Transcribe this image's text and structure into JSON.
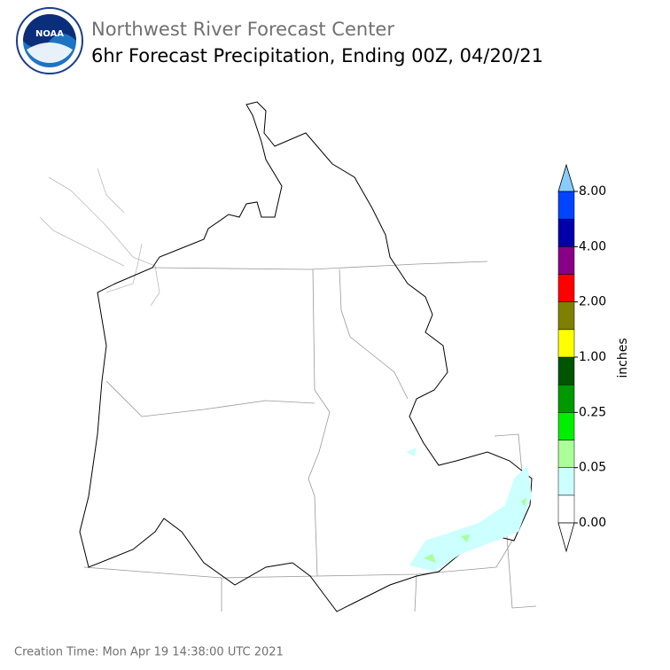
{
  "header": {
    "organization": "Northwest River Forecast Center",
    "title": "6hr Forecast Precipitation, Ending 00Z, 04/20/21",
    "logo_text": "NOAA"
  },
  "colorbar": {
    "label": "inches",
    "ticks": [
      "0.00",
      "0.05",
      "0.25",
      "1.00",
      "2.00",
      "4.00",
      "8.00"
    ],
    "under_color": "#ffffff",
    "colors": [
      "#ffffff",
      "#ccffff",
      "#aaff99",
      "#00ee00",
      "#009900",
      "#005500",
      "#ffff00",
      "#808000",
      "#ff0000",
      "#880088",
      "#0000aa",
      "#0044ff"
    ],
    "over_color": "#88ccff"
  },
  "footer": {
    "creation_time": "Creation Time: Mon Apr 19 14:38:00 UTC 2021"
  }
}
